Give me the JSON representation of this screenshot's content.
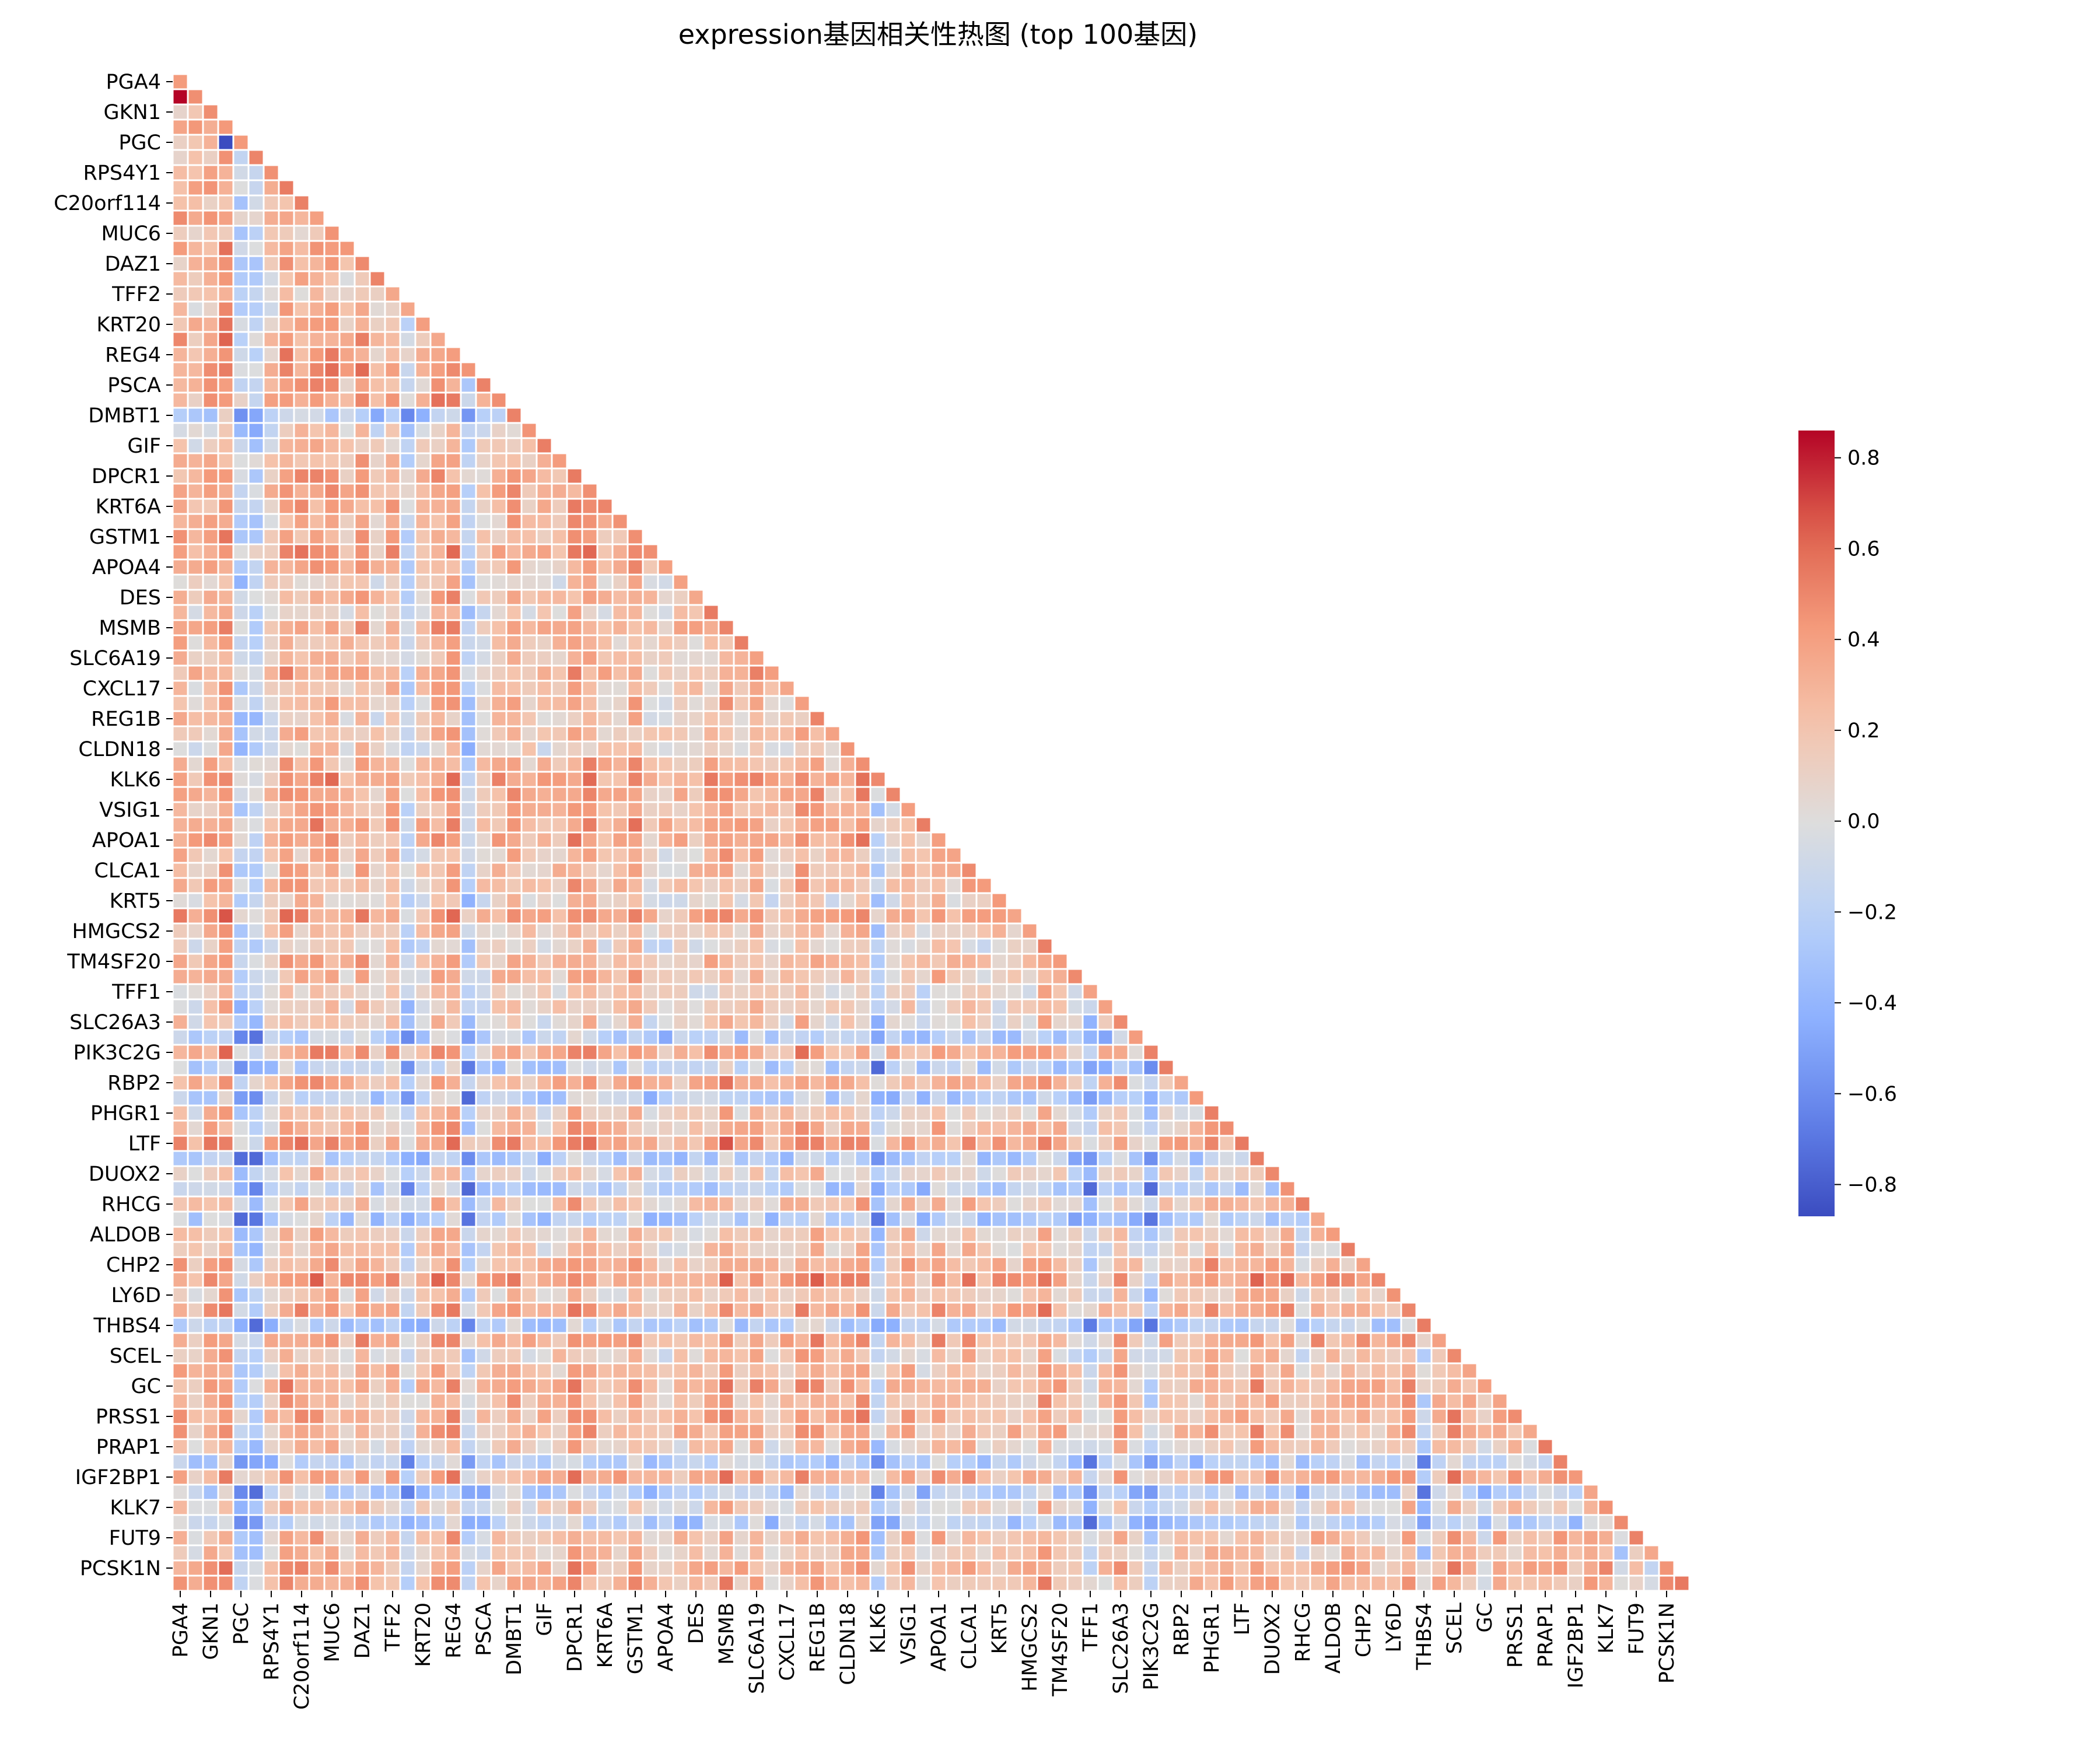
{
  "chart_data": {
    "type": "heatmap",
    "title": "expression基因相关性热图 (top 100基因)",
    "xlabel": "",
    "ylabel": "",
    "mask": "lower-triangle",
    "n_genes": 100,
    "tick_labels": [
      "PGA4",
      "GKN1",
      "PGC",
      "RPS4Y1",
      "C20orf114",
      "MUC6",
      "DAZ1",
      "TFF2",
      "KRT20",
      "REG4",
      "PSCA",
      "DMBT1",
      "GIF",
      "DPCR1",
      "KRT6A",
      "GSTM1",
      "APOA4",
      "DES",
      "MSMB",
      "SLC6A19",
      "CXCL17",
      "REG1B",
      "CLDN18",
      "KLK6",
      "VSIG1",
      "APOA1",
      "CLCA1",
      "KRT5",
      "HMGCS2",
      "TM4SF20",
      "TFF1",
      "SLC26A3",
      "PIK3C2G",
      "RBP2",
      "PHGR1",
      "LTF",
      "DUOX2",
      "RHCG",
      "ALDOB",
      "CHP2",
      "LY6D",
      "THBS4",
      "SCEL",
      "GC",
      "PRSS1",
      "PRAP1",
      "IGF2BP1",
      "KLK7",
      "FUT9",
      "PCSK1N"
    ],
    "tick_label_every": 2,
    "colormap": "coolwarm",
    "colorbar": {
      "vmin": -0.87,
      "vmax": 0.86,
      "ticks": [
        -0.8,
        -0.6,
        -0.4,
        -0.2,
        0.0,
        0.2,
        0.4,
        0.6,
        0.8
      ],
      "tick_labels": [
        "−0.8",
        "−0.6",
        "−0.4",
        "−0.2",
        "0.0",
        "0.2",
        "0.4",
        "0.6",
        "0.8"
      ]
    },
    "grid": "white cell borders",
    "values_note": "correlation values in [-0.87, 0.86]; cells shown as lower triangle including diagonal"
  }
}
